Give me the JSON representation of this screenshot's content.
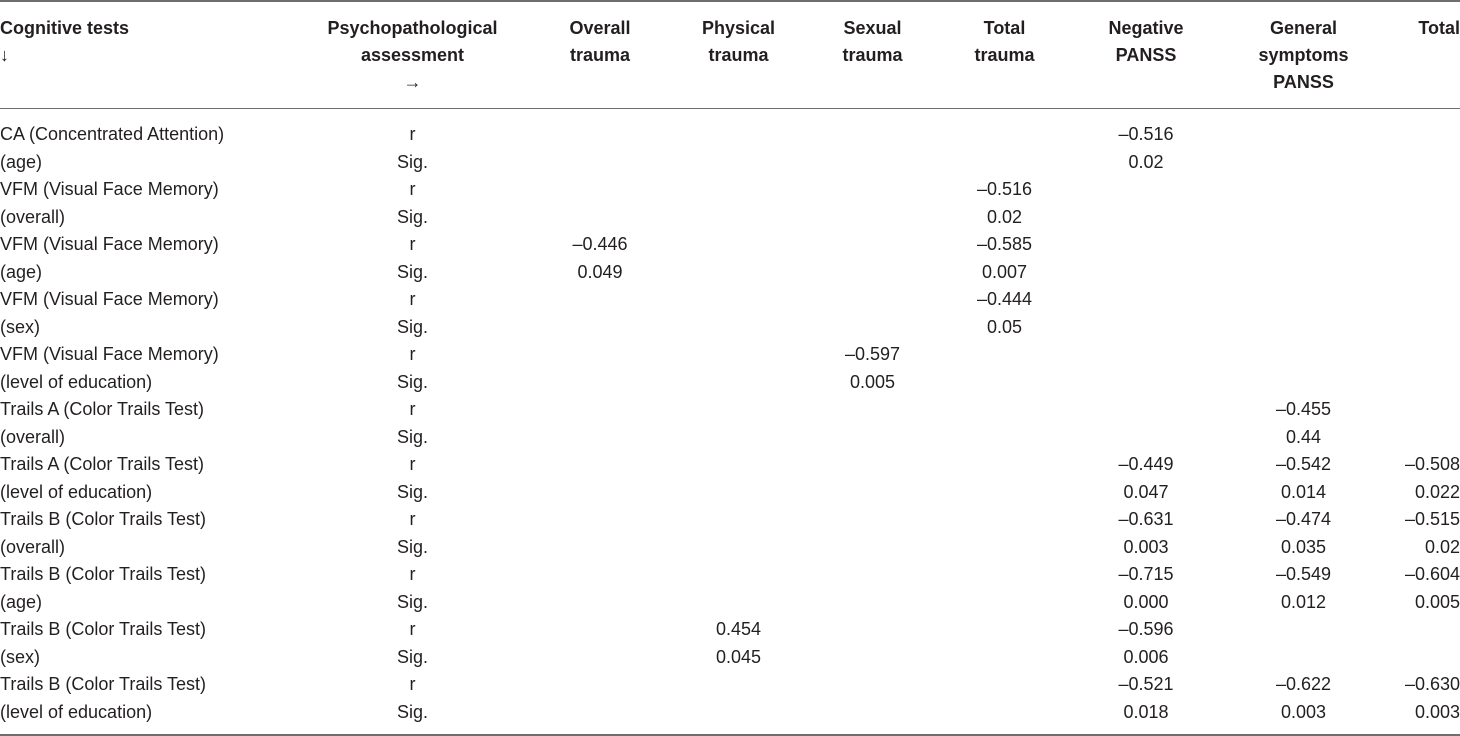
{
  "headers": [
    [
      "Cognitive tests",
      "↓"
    ],
    [
      "Psychopathological",
      "assessment",
      "→"
    ],
    [
      "Overall",
      "trauma"
    ],
    [
      "Physical",
      "trauma"
    ],
    [
      "Sexual",
      "trauma"
    ],
    [
      "Total",
      "trauma"
    ],
    [
      "Negative",
      "PANSS"
    ],
    [
      "General",
      "symptoms",
      "PANSS"
    ],
    [
      "Total"
    ]
  ],
  "rows": [
    [
      "CA (Concentrated Attention)",
      "r",
      "",
      "",
      "",
      "",
      "–0.516",
      "",
      ""
    ],
    [
      "(age)",
      "Sig.",
      "",
      "",
      "",
      "",
      "0.02",
      "",
      ""
    ],
    [
      "VFM (Visual Face Memory)",
      "r",
      "",
      "",
      "",
      "–0.516",
      "",
      "",
      ""
    ],
    [
      "(overall)",
      "Sig.",
      "",
      "",
      "",
      "0.02",
      "",
      "",
      ""
    ],
    [
      "VFM (Visual Face Memory)",
      "r",
      "–0.446",
      "",
      "",
      "–0.585",
      "",
      "",
      ""
    ],
    [
      "(age)",
      "Sig.",
      "0.049",
      "",
      "",
      "0.007",
      "",
      "",
      ""
    ],
    [
      "VFM (Visual Face Memory)",
      "r",
      "",
      "",
      "",
      "–0.444",
      "",
      "",
      ""
    ],
    [
      "(sex)",
      "Sig.",
      "",
      "",
      "",
      "0.05",
      "",
      "",
      ""
    ],
    [
      "VFM (Visual Face Memory)",
      "r",
      "",
      "",
      "–0.597",
      "",
      "",
      "",
      ""
    ],
    [
      "(level of education)",
      "Sig.",
      "",
      "",
      "0.005",
      "",
      "",
      "",
      ""
    ],
    [
      "Trails A (Color Trails Test)",
      "r",
      "",
      "",
      "",
      "",
      "",
      "–0.455",
      ""
    ],
    [
      "(overall)",
      "Sig.",
      "",
      "",
      "",
      "",
      "",
      "0.44",
      ""
    ],
    [
      "Trails A (Color Trails Test)",
      "r",
      "",
      "",
      "",
      "",
      "–0.449",
      "–0.542",
      "–0.508"
    ],
    [
      "(level of education)",
      "Sig.",
      "",
      "",
      "",
      "",
      "0.047",
      "0.014",
      "0.022"
    ],
    [
      "Trails B (Color Trails Test)",
      "r",
      "",
      "",
      "",
      "",
      "–0.631",
      "–0.474",
      "–0.515"
    ],
    [
      "(overall)",
      "Sig.",
      "",
      "",
      "",
      "",
      "0.003",
      "0.035",
      "0.02"
    ],
    [
      "Trails B (Color Trails Test)",
      "r",
      "",
      "",
      "",
      "",
      "–0.715",
      "–0.549",
      "–0.604"
    ],
    [
      "(age)",
      "Sig.",
      "",
      "",
      "",
      "",
      "0.000",
      "0.012",
      "0.005"
    ],
    [
      "Trails B (Color Trails Test)",
      "r",
      "",
      "0.454",
      "",
      "",
      "–0.596",
      "",
      ""
    ],
    [
      "(sex)",
      "Sig.",
      "",
      "0.045",
      "",
      "",
      "0.006",
      "",
      ""
    ],
    [
      "Trails B (Color Trails Test)",
      "r",
      "",
      "",
      "",
      "",
      "–0.521",
      "–0.622",
      "–0.630"
    ],
    [
      "(level of education)",
      "Sig.",
      "",
      "",
      "",
      "",
      "0.018",
      "0.003",
      "0.003"
    ]
  ]
}
